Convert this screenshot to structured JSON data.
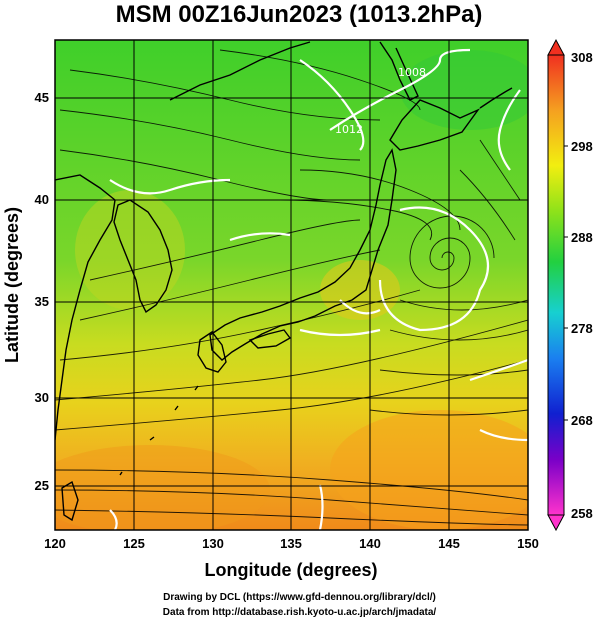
{
  "title": "MSM 00Z16Jun2023 (1013.2hPa)",
  "axes": {
    "xlabel": "Longitude (degrees)",
    "ylabel": "Latitude  (degrees)",
    "x_ticks": [
      "120",
      "125",
      "130",
      "135",
      "140",
      "145",
      "150"
    ],
    "y_ticks": [
      "25",
      "30",
      "35",
      "40",
      "45"
    ],
    "xlim": [
      120,
      150
    ],
    "ylim": [
      22.4,
      47.6
    ]
  },
  "colorbar": {
    "ticks": [
      "308",
      "298",
      "288",
      "278",
      "268",
      "258"
    ],
    "range": [
      258,
      308
    ],
    "unit_values": [
      308,
      298,
      288,
      278,
      268,
      258
    ]
  },
  "isobar_labels": [
    "1008",
    "1012"
  ],
  "credits": {
    "line1": "Drawing by DCL (https://www.gfd-dennou.org/library/dcl/)",
    "line2": "Data from http://database.rish.kyoto-u.ac.jp/arch/jmadata/"
  },
  "colors": {
    "land_outline": "#000000",
    "isobar": "#ffffff",
    "field_cool": "#59d424",
    "field_warm": "#f0a020"
  }
}
